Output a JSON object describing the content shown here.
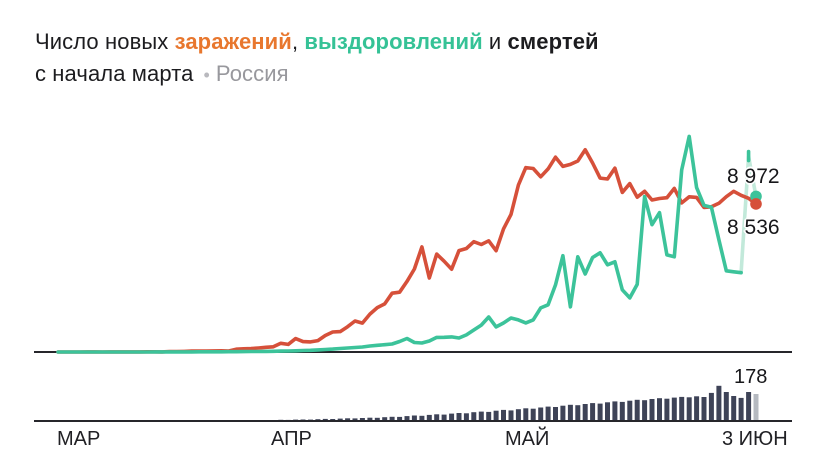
{
  "title": {
    "part1": "Число новых ",
    "infections_word": "заражений",
    "comma": ", ",
    "recoveries_word": "выздоровлений",
    "and_word": " и ",
    "deaths_word": "смертей",
    "line2": "с начала марта",
    "bullet": "•",
    "region": "Россия"
  },
  "colors": {
    "infections_line": "#d6503a",
    "recoveries_line": "#3cc39a",
    "recoveries_highlight": "#c2e9da",
    "deaths_bar": "#3e4357",
    "deaths_last_bar": "#b5b9c0",
    "title_orange": "#e8772e",
    "title_green": "#35c296",
    "gray_text": "#98989d",
    "axis": "#26262b"
  },
  "end_labels": {
    "recoveries_value": "8 972",
    "infections_value": "8 536",
    "deaths_value": "178"
  },
  "axis": {
    "months": [
      "МАР",
      "АПР",
      "МАЙ",
      "3 ИЮН"
    ]
  },
  "chart_data": [
    {
      "type": "line",
      "title": "Число новых заражений, выздоровлений и смертей с начала марта",
      "region": "Россия",
      "x_axis": {
        "tick_labels": [
          "МАР",
          "АПР",
          "МАЙ",
          "3 ИЮН"
        ],
        "start": "1 марта",
        "end": "3 июня",
        "interval": "день",
        "points": 95
      },
      "ylim": [
        0,
        12800
      ],
      "grid": false,
      "legend": "в заголовке",
      "series": [
        {
          "name": "заражений",
          "color": "#d6503a",
          "last_value": 8536,
          "values": [
            0,
            1,
            0,
            0,
            3,
            6,
            0,
            4,
            3,
            3,
            8,
            6,
            11,
            14,
            4,
            30,
            21,
            33,
            52,
            54,
            53,
            61,
            71,
            57,
            163,
            182,
            196,
            228,
            270,
            302,
            500,
            440,
            771,
            601,
            582,
            658,
            954,
            1154,
            1175,
            1459,
            1786,
            1667,
            2186,
            2558,
            2774,
            3388,
            3448,
            4070,
            4785,
            6060,
            4268,
            5642,
            5236,
            4774,
            5849,
            5966,
            6361,
            6198,
            6411,
            5841,
            7099,
            7933,
            9623,
            10633,
            10581,
            10102,
            10559,
            11231,
            10699,
            10817,
            11012,
            11656,
            10899,
            10028,
            9974,
            10598,
            9200,
            9709,
            8926,
            9263,
            8764,
            8849,
            8894,
            9434,
            8599,
            8946,
            8915,
            8338,
            8371,
            8572,
            8952,
            9268,
            9035,
            8863,
            8536
          ]
        },
        {
          "name": "выздоровлений",
          "color": "#3cc39a",
          "last_value": 8972,
          "highlight_from_index": 92,
          "highlight_color": "#c2e9da",
          "values": [
            0,
            0,
            0,
            0,
            0,
            0,
            0,
            0,
            1,
            1,
            2,
            2,
            2,
            3,
            3,
            4,
            5,
            6,
            8,
            9,
            10,
            12,
            14,
            16,
            18,
            22,
            26,
            30,
            35,
            42,
            50,
            60,
            70,
            85,
            100,
            120,
            145,
            170,
            200,
            230,
            260,
            290,
            345,
            385,
            420,
            460,
            605,
            780,
            550,
            520,
            635,
            840,
            845,
            870,
            810,
            985,
            1270,
            1550,
            2020,
            1445,
            1670,
            1960,
            1850,
            1680,
            1850,
            2540,
            2720,
            3870,
            5550,
            2600,
            5490,
            4500,
            5450,
            5720,
            5030,
            5200,
            3585,
            3120,
            3900,
            8960,
            7340,
            8030,
            5600,
            5490,
            10500,
            12430,
            9480,
            8450,
            8350,
            6470,
            4680,
            4625,
            4570,
            11270,
            8972
          ]
        }
      ]
    },
    {
      "type": "bar",
      "name": "смертей",
      "color": "#3e4357",
      "last_bar_color": "#b5b9c0",
      "start_day_index": 23,
      "last_value": 178,
      "max_value": 232,
      "values": [
        1,
        2,
        3,
        4,
        5,
        4,
        6,
        8,
        7,
        9,
        10,
        9,
        12,
        14,
        13,
        16,
        18,
        17,
        20,
        22,
        21,
        25,
        28,
        27,
        32,
        36,
        34,
        40,
        44,
        42,
        49,
        53,
        51,
        58,
        62,
        60,
        68,
        73,
        70,
        78,
        84,
        81,
        89,
        95,
        92,
        101,
        107,
        104,
        112,
        118,
        115,
        123,
        129,
        126,
        134,
        140,
        137,
        145,
        150,
        147,
        154,
        159,
        156,
        163,
        158,
        185,
        232,
        191,
        165,
        152,
        191,
        178
      ]
    }
  ]
}
